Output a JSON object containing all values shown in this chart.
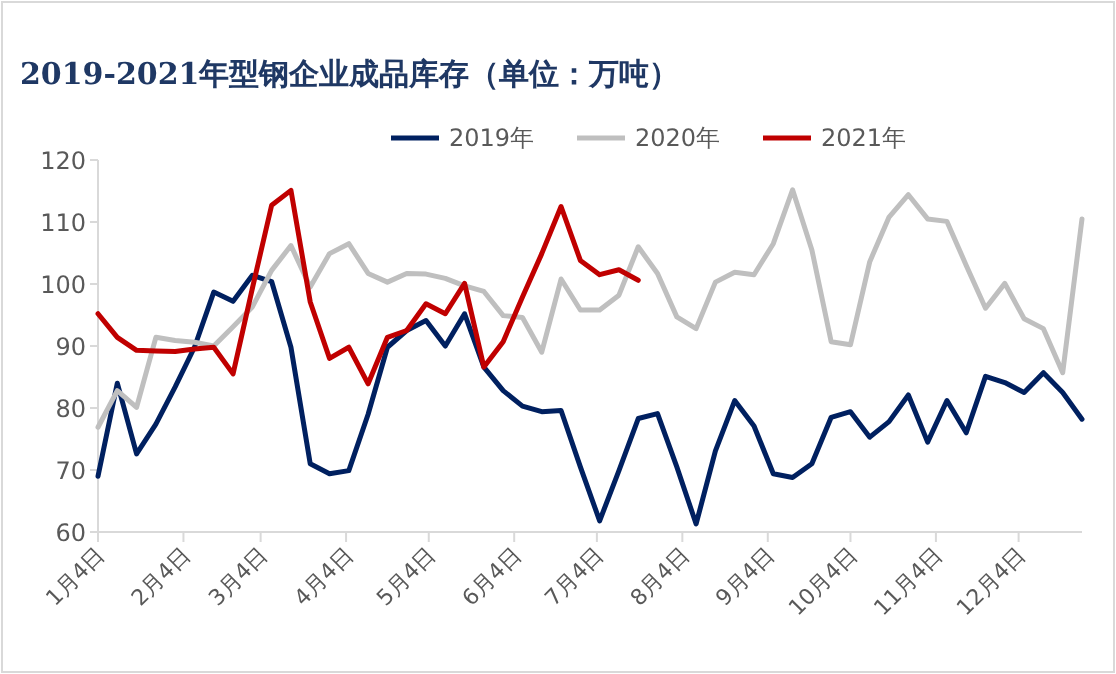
{
  "chart_data": {
    "type": "line",
    "title": "2019-2021年型钢企业成品库存（单位：万吨）",
    "x": [
      "--01-04",
      "--01-11",
      "--01-18",
      "--01-25",
      "--02-01",
      "--02-08",
      "--02-15",
      "--02-22",
      "--03-01",
      "--03-08",
      "--03-15",
      "--03-22",
      "--03-29",
      "--04-05",
      "--04-12",
      "--04-19",
      "--04-26",
      "--05-03",
      "--05-10",
      "--05-17",
      "--05-24",
      "--05-31",
      "--06-07",
      "--06-14",
      "--06-21",
      "--06-28",
      "--07-05",
      "--07-12",
      "--07-19",
      "--07-26",
      "--08-02",
      "--08-09",
      "--08-16",
      "--08-23",
      "--08-30",
      "--09-06",
      "--09-13",
      "--09-20",
      "--09-27",
      "--10-04",
      "--10-11",
      "--10-18",
      "--10-25",
      "--11-01",
      "--11-08",
      "--11-15",
      "--11-22",
      "--11-29",
      "--12-06",
      "--12-13",
      "--12-20",
      "--12-27"
    ],
    "series": [
      {
        "name": "2019年",
        "color": "#002060",
        "values": [
          69,
          84,
          72.6,
          77.4,
          83.4,
          89.8,
          98.7,
          97.2,
          101.4,
          100.4,
          89.8,
          71,
          69.4,
          69.9,
          79,
          89.8,
          92.5,
          94.1,
          90,
          95.2,
          86.6,
          82.8,
          80.3,
          79.4,
          79.6,
          70.5,
          61.8,
          69.9,
          78.3,
          79.1,
          70.5,
          61.3,
          73.1,
          81.2,
          77.1,
          69.4,
          68.8,
          71,
          78.5,
          79.4,
          75.3,
          77.8,
          82.1,
          74.5,
          81.2,
          76,
          85.1,
          84.1,
          82.5,
          85.7,
          82.5,
          78.2
        ]
      },
      {
        "name": "2020年",
        "color": "#bfbfbf",
        "values": [
          76.9,
          82.8,
          80.1,
          91.4,
          90.9,
          90.6,
          90,
          93.1,
          96.3,
          102.2,
          106.2,
          99.5,
          104.9,
          106.5,
          101.7,
          100.3,
          101.7,
          101.6,
          100.9,
          99.7,
          98.8,
          94.9,
          94.6,
          89,
          100.8,
          95.8,
          95.8,
          98.2,
          106,
          101.7,
          94.7,
          92.8,
          100.3,
          101.9,
          101.5,
          106.5,
          115.2,
          105.5,
          90.7,
          90.2,
          103.6,
          110.8,
          114.4,
          110.5,
          110.1,
          103,
          96.1,
          100.1,
          94.4,
          92.8,
          85.7,
          110.5
        ]
      },
      {
        "name": "2021年",
        "color": "#c00000",
        "x": [
          "--01-04",
          "--01-11",
          "--01-18",
          "--01-25",
          "--02-01",
          "--02-08",
          "--02-15",
          "--02-22",
          "--03-01",
          "--03-08",
          "--03-15",
          "--03-22",
          "--03-29",
          "--04-05",
          "--04-12",
          "--04-19",
          "--04-26",
          "--05-03",
          "--05-10",
          "--05-17",
          "--05-24",
          "--05-31",
          "--06-07",
          "--06-14",
          "--06-21",
          "--06-28",
          "--07-05",
          "--07-12",
          "--07-19"
        ],
        "values": [
          95.2,
          91.4,
          89.3,
          89.2,
          89.1,
          89.5,
          89.8,
          85.5,
          99.3,
          112.7,
          115.1,
          97.1,
          88,
          89.8,
          83.9,
          91.4,
          92.5,
          96.8,
          95.2,
          100.1,
          86.6,
          90.7,
          97.9,
          104.9,
          112.5,
          103.8,
          101.5,
          102.3,
          100.6
        ]
      }
    ],
    "xlim": [
      "--01-04",
      "--12-27"
    ],
    "xticks": [
      {
        "value": "--01-04",
        "label": "1月4日"
      },
      {
        "value": "--02-04",
        "label": "2月4日"
      },
      {
        "value": "--03-04",
        "label": "3月4日"
      },
      {
        "value": "--04-04",
        "label": "4月4日"
      },
      {
        "value": "--05-04",
        "label": "5月4日"
      },
      {
        "value": "--06-04",
        "label": "6月4日"
      },
      {
        "value": "--07-04",
        "label": "7月4日"
      },
      {
        "value": "--08-04",
        "label": "8月4日"
      },
      {
        "value": "--09-04",
        "label": "9月4日"
      },
      {
        "value": "--10-04",
        "label": "10月4日"
      },
      {
        "value": "--11-04",
        "label": "11月4日"
      },
      {
        "value": "--12-04",
        "label": "12月4日"
      }
    ],
    "ylim": [
      60,
      120
    ],
    "yticks": [
      60,
      70,
      80,
      90,
      100,
      110,
      120
    ],
    "legend": "top",
    "grid": false,
    "marker": "none",
    "line_style": "solid"
  }
}
